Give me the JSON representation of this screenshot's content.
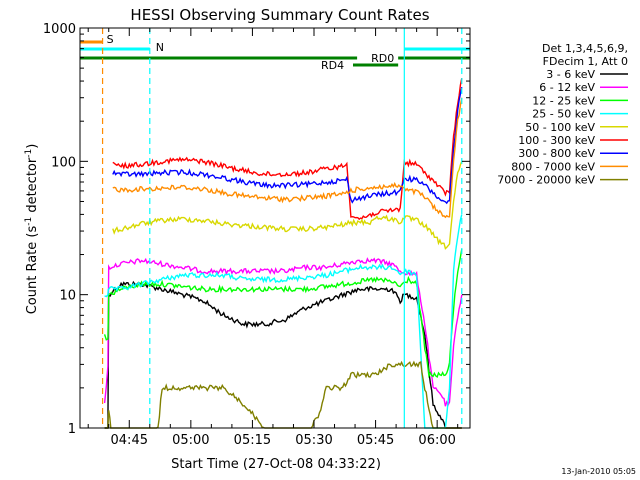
{
  "chart_data": {
    "type": "line",
    "title": "HESSI Observing Summary Count Rates",
    "xlabel": "Start Time (27-Oct-08 04:33:22)",
    "ylabel_parts": [
      "Count Rate (s",
      "-1",
      " detector",
      "-1",
      ")"
    ],
    "yscale": "log",
    "ylim": [
      1,
      1000
    ],
    "y_ticks": [
      {
        "v": 1,
        "label": "1"
      },
      {
        "v": 10,
        "label": "10"
      },
      {
        "v": 100,
        "label": "100"
      },
      {
        "v": 1000,
        "label": "1000"
      }
    ],
    "xlim_min": [
      0,
      95
    ],
    "x_ticks": [
      {
        "min": 12,
        "label": "04:45"
      },
      {
        "min": 27,
        "label": "05:00"
      },
      {
        "min": 42,
        "label": "05:15"
      },
      {
        "min": 57,
        "label": "05:30"
      },
      {
        "min": 72,
        "label": "05:45"
      },
      {
        "min": 87,
        "label": "06:00"
      }
    ],
    "legend_header": [
      "Det 1,3,4,5,6,9,",
      "FDecim 1, Att 0"
    ],
    "series": [
      {
        "name": "3 - 6 keV",
        "color": "#000000",
        "points": [
          [
            6,
            1
          ],
          [
            6.8,
            1
          ],
          [
            7,
            10
          ],
          [
            10,
            12
          ],
          [
            15,
            12
          ],
          [
            20,
            11
          ],
          [
            25,
            10
          ],
          [
            30,
            9
          ],
          [
            35,
            7
          ],
          [
            40,
            6
          ],
          [
            45,
            6
          ],
          [
            50,
            6.5
          ],
          [
            55,
            8
          ],
          [
            60,
            9
          ],
          [
            64,
            10
          ],
          [
            68,
            11
          ],
          [
            72,
            11
          ],
          [
            76,
            11
          ],
          [
            78,
            9
          ],
          [
            79,
            10
          ],
          [
            82,
            9.5
          ],
          [
            84,
            5
          ],
          [
            86,
            1.5
          ],
          [
            88,
            1.2
          ],
          [
            89,
            1
          ],
          [
            90,
            1
          ],
          [
            91,
            1
          ],
          [
            92,
            1
          ],
          [
            93,
            1
          ]
        ]
      },
      {
        "name": "6 - 12 keV",
        "color": "#ff00ff",
        "points": [
          [
            6,
            1.5
          ],
          [
            6.8,
            3
          ],
          [
            7,
            16
          ],
          [
            10,
            17
          ],
          [
            15,
            18
          ],
          [
            20,
            17
          ],
          [
            25,
            16
          ],
          [
            30,
            15
          ],
          [
            35,
            15
          ],
          [
            40,
            15
          ],
          [
            45,
            15
          ],
          [
            50,
            15
          ],
          [
            55,
            16
          ],
          [
            60,
            16
          ],
          [
            64,
            17
          ],
          [
            68,
            18
          ],
          [
            72,
            18
          ],
          [
            76,
            17
          ],
          [
            78,
            15
          ],
          [
            82,
            14
          ],
          [
            84,
            6
          ],
          [
            86,
            2
          ],
          [
            88,
            1.8
          ],
          [
            89,
            1.5
          ],
          [
            90,
            1.5
          ],
          [
            91,
            4
          ],
          [
            92,
            7
          ],
          [
            93,
            10
          ]
        ]
      },
      {
        "name": "12 - 25 keV",
        "color": "#00ff00",
        "points": [
          [
            6,
            5
          ],
          [
            6.8,
            4.5
          ],
          [
            7,
            10
          ],
          [
            10,
            11
          ],
          [
            15,
            12
          ],
          [
            20,
            12
          ],
          [
            25,
            11.5
          ],
          [
            30,
            11
          ],
          [
            35,
            11
          ],
          [
            40,
            11
          ],
          [
            45,
            11
          ],
          [
            50,
            11
          ],
          [
            55,
            11
          ],
          [
            60,
            11.5
          ],
          [
            64,
            12
          ],
          [
            68,
            12.5
          ],
          [
            72,
            13
          ],
          [
            76,
            12.5
          ],
          [
            78,
            11.5
          ],
          [
            80,
            13
          ],
          [
            82,
            12
          ],
          [
            84,
            4
          ],
          [
            85,
            2.5
          ],
          [
            86,
            2.5
          ],
          [
            88,
            2.5
          ],
          [
            89,
            2.5
          ],
          [
            90,
            3
          ],
          [
            91,
            8
          ],
          [
            92,
            15
          ],
          [
            93,
            22
          ]
        ]
      },
      {
        "name": "25 - 50 keV",
        "color": "#00ffff",
        "points": [
          [
            6,
            10
          ],
          [
            6.8,
            10
          ],
          [
            7,
            11
          ],
          [
            10,
            11
          ],
          [
            15,
            12
          ],
          [
            20,
            13
          ],
          [
            25,
            14
          ],
          [
            30,
            14
          ],
          [
            35,
            14
          ],
          [
            40,
            13
          ],
          [
            45,
            13
          ],
          [
            50,
            13
          ],
          [
            55,
            13.5
          ],
          [
            60,
            14
          ],
          [
            64,
            15
          ],
          [
            68,
            16
          ],
          [
            72,
            16
          ],
          [
            76,
            16
          ],
          [
            78,
            14.5
          ],
          [
            80,
            15
          ],
          [
            82,
            14
          ],
          [
            84,
            1
          ],
          [
            86,
            1
          ],
          [
            88,
            1
          ],
          [
            89,
            1
          ],
          [
            90,
            2
          ],
          [
            91,
            15
          ],
          [
            92,
            28
          ],
          [
            93,
            40
          ]
        ]
      },
      {
        "name": "50 - 100 keV",
        "color": "#d8d800",
        "points": [
          [
            8,
            30
          ],
          [
            10,
            31
          ],
          [
            15,
            34
          ],
          [
            20,
            36
          ],
          [
            25,
            37
          ],
          [
            30,
            36
          ],
          [
            35,
            34
          ],
          [
            40,
            33
          ],
          [
            45,
            32
          ],
          [
            50,
            31
          ],
          [
            55,
            31
          ],
          [
            60,
            32
          ],
          [
            65,
            34
          ],
          [
            68,
            35
          ],
          [
            71,
            35
          ],
          [
            72,
            38
          ],
          [
            76,
            37
          ],
          [
            78,
            35
          ],
          [
            79,
            38
          ],
          [
            82,
            36
          ],
          [
            84,
            33
          ],
          [
            86,
            28
          ],
          [
            88,
            24
          ],
          [
            89,
            23
          ],
          [
            90,
            24
          ],
          [
            91,
            50
          ],
          [
            92,
            80
          ],
          [
            93,
            100
          ]
        ]
      },
      {
        "name": "100 - 300 keV",
        "color": "#ff0000",
        "points": [
          [
            8,
            95
          ],
          [
            10,
            92
          ],
          [
            15,
            95
          ],
          [
            20,
            100
          ],
          [
            25,
            103
          ],
          [
            30,
            100
          ],
          [
            35,
            92
          ],
          [
            40,
            85
          ],
          [
            45,
            80
          ],
          [
            50,
            80
          ],
          [
            55,
            82
          ],
          [
            60,
            88
          ],
          [
            64,
            92
          ],
          [
            65,
            95
          ],
          [
            66,
            40
          ],
          [
            68,
            37
          ],
          [
            72,
            41
          ],
          [
            76,
            43
          ],
          [
            78,
            44
          ],
          [
            79,
            98
          ],
          [
            82,
            95
          ],
          [
            84,
            82
          ],
          [
            86,
            72
          ],
          [
            88,
            62
          ],
          [
            89,
            58
          ],
          [
            90,
            60
          ],
          [
            91,
            150
          ],
          [
            92,
            280
          ],
          [
            93,
            420
          ]
        ]
      },
      {
        "name": "300 - 800 keV",
        "color": "#0000ff",
        "points": [
          [
            8,
            82
          ],
          [
            10,
            80
          ],
          [
            15,
            80
          ],
          [
            20,
            82
          ],
          [
            25,
            83
          ],
          [
            30,
            80
          ],
          [
            35,
            75
          ],
          [
            40,
            70
          ],
          [
            45,
            66
          ],
          [
            50,
            66
          ],
          [
            55,
            67
          ],
          [
            60,
            70
          ],
          [
            64,
            72
          ],
          [
            65,
            74
          ],
          [
            66,
            51
          ],
          [
            68,
            53
          ],
          [
            72,
            56
          ],
          [
            76,
            58
          ],
          [
            78,
            59
          ],
          [
            79,
            75
          ],
          [
            82,
            72
          ],
          [
            84,
            66
          ],
          [
            86,
            58
          ],
          [
            88,
            51
          ],
          [
            89,
            48
          ],
          [
            90,
            50
          ],
          [
            91,
            120
          ],
          [
            92,
            240
          ],
          [
            93,
            360
          ]
        ]
      },
      {
        "name": "800 - 7000 keV",
        "color": "#ff8c00",
        "points": [
          [
            8,
            63
          ],
          [
            10,
            61
          ],
          [
            15,
            62
          ],
          [
            20,
            63
          ],
          [
            25,
            64
          ],
          [
            30,
            62
          ],
          [
            35,
            58
          ],
          [
            40,
            55
          ],
          [
            45,
            53
          ],
          [
            50,
            52
          ],
          [
            55,
            53
          ],
          [
            60,
            55
          ],
          [
            64,
            57
          ],
          [
            65,
            59
          ],
          [
            66,
            60
          ],
          [
            68,
            62
          ],
          [
            72,
            64
          ],
          [
            76,
            65
          ],
          [
            78,
            66
          ],
          [
            79,
            61
          ],
          [
            82,
            59
          ],
          [
            84,
            54
          ],
          [
            86,
            46
          ],
          [
            88,
            40
          ],
          [
            89,
            38
          ],
          [
            90,
            40
          ],
          [
            91,
            100
          ],
          [
            92,
            200
          ],
          [
            93,
            300
          ]
        ]
      },
      {
        "name": "7000 - 20000 keV",
        "color": "#808000",
        "points": [
          [
            6,
            1
          ],
          [
            6.8,
            1
          ],
          [
            7,
            1.4
          ],
          [
            7.5,
            1
          ],
          [
            19,
            1
          ],
          [
            20,
            2
          ],
          [
            25,
            2
          ],
          [
            30,
            2
          ],
          [
            35,
            2
          ],
          [
            40,
            1.5
          ],
          [
            45,
            1
          ],
          [
            55,
            1
          ],
          [
            56,
            1
          ],
          [
            58,
            1.2
          ],
          [
            60,
            2
          ],
          [
            64,
            2
          ],
          [
            66,
            2.5
          ],
          [
            70,
            2.5
          ],
          [
            72,
            2.5
          ],
          [
            74,
            2.8
          ],
          [
            76,
            3
          ],
          [
            78,
            3
          ],
          [
            80,
            3
          ],
          [
            82,
            3
          ],
          [
            83,
            3
          ],
          [
            84,
            2
          ],
          [
            86,
            1
          ],
          [
            93,
            1
          ]
        ]
      }
    ],
    "flags": {
      "saa": {
        "label": "S",
        "color": "#ff8c00",
        "x_min": [
          0,
          5.5
        ]
      },
      "night": {
        "label": "N",
        "color": "#00ffff",
        "segments_min": [
          [
            0,
            17
          ],
          [
            79,
            95
          ]
        ]
      },
      "decim_bar": {
        "color": "#008000",
        "segments_min": [
          [
            0,
            67.5
          ],
          [
            77.5,
            95
          ]
        ]
      },
      "rd0_label": "RD0",
      "rd4_label": "RD4",
      "rd4_segment_min": [
        66.5,
        77.5
      ]
    },
    "vlines": [
      {
        "min": 5.5,
        "color": "#ff8c00",
        "style": "dashed"
      },
      {
        "min": 17,
        "color": "#00ffff",
        "style": "dashed"
      },
      {
        "min": 79,
        "color": "#00ffff",
        "style": "solid"
      },
      {
        "min": 93,
        "color": "#00ffff",
        "style": "dashed"
      }
    ]
  },
  "footer_date": "13-Jan-2010 05:05"
}
